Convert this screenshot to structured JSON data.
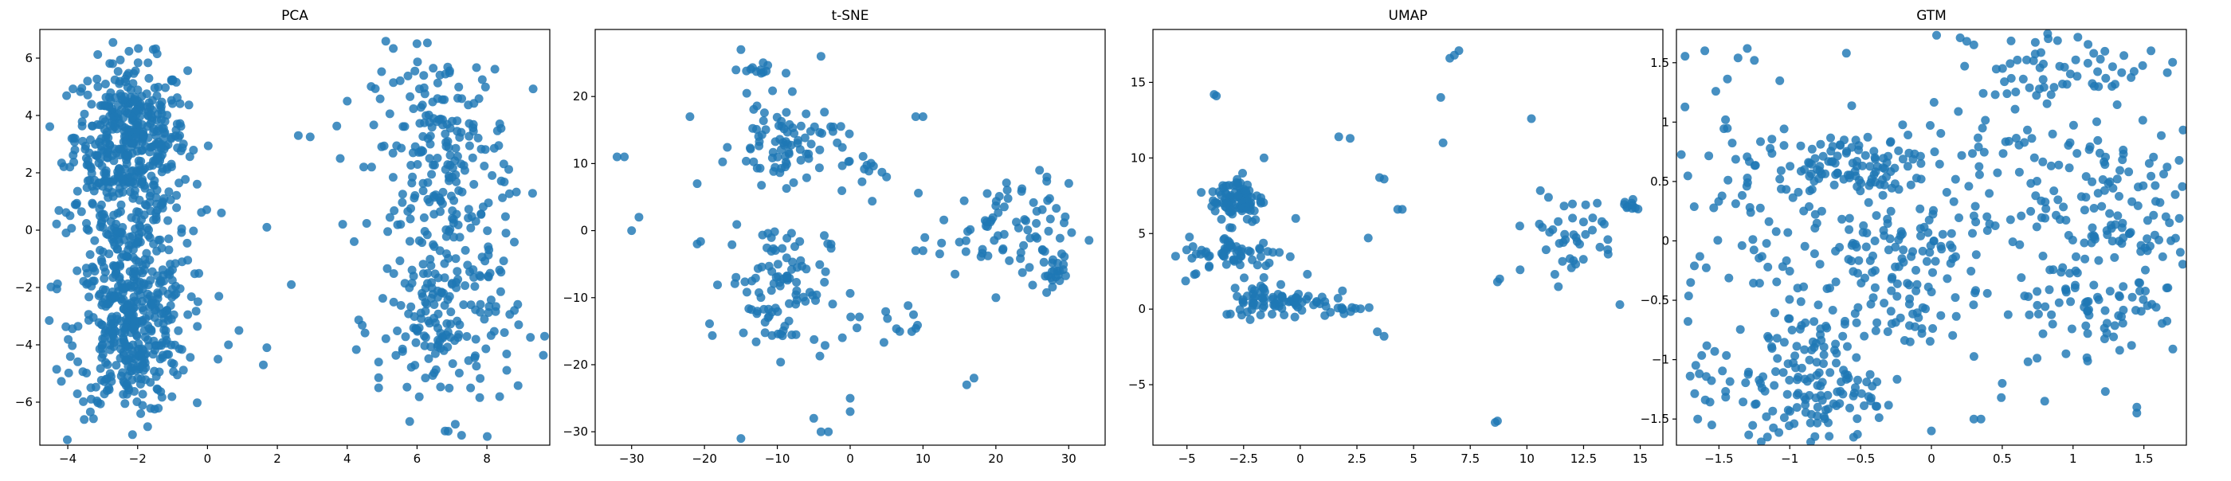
{
  "figure": {
    "background": "#ffffff",
    "point_color": "#1f77b4"
  },
  "chart_data": [
    {
      "type": "scatter",
      "title": "PCA",
      "xlabel": "",
      "ylabel": "",
      "xlim": [
        -4.8,
        9.8
      ],
      "ylim": [
        -7.5,
        7.0
      ],
      "xticks": [
        -4,
        -2,
        0,
        2,
        4,
        6,
        8
      ],
      "yticks": [
        -6,
        -4,
        -2,
        0,
        2,
        4,
        6
      ],
      "grid": false,
      "clusters": [
        {
          "cx": -2.2,
          "cy": 3.3,
          "sx": 0.8,
          "sy": 1.3,
          "n": 380
        },
        {
          "cx": -2.2,
          "cy": -3.5,
          "sx": 0.8,
          "sy": 1.5,
          "n": 380
        },
        {
          "cx": -2.3,
          "cy": 0.0,
          "sx": 0.9,
          "sy": 1.6,
          "n": 180
        },
        {
          "cx": 6.7,
          "cy": 3.0,
          "sx": 1.0,
          "sy": 1.6,
          "n": 170
        },
        {
          "cx": 6.9,
          "cy": -3.2,
          "sx": 1.0,
          "sy": 1.6,
          "n": 180
        },
        {
          "cx": 6.8,
          "cy": 0.3,
          "sx": 1.1,
          "sy": 1.0,
          "n": 40
        }
      ],
      "points": [
        [
          1.7,
          0.1
        ],
        [
          2.6,
          3.3
        ],
        [
          2.4,
          -1.9
        ],
        [
          1.6,
          -4.7
        ],
        [
          1.7,
          -4.1
        ],
        [
          4.0,
          4.5
        ],
        [
          3.8,
          2.5
        ],
        [
          4.2,
          -0.4
        ],
        [
          4.7,
          2.2
        ],
        [
          4.9,
          -4.6
        ],
        [
          4.9,
          -5.5
        ],
        [
          0.4,
          0.6
        ],
        [
          0.3,
          -4.5
        ],
        [
          0.9,
          -3.5
        ],
        [
          0.6,
          -4.0
        ]
      ]
    },
    {
      "type": "scatter",
      "title": "t-SNE",
      "xlabel": "",
      "ylabel": "",
      "xlim": [
        -35,
        35
      ],
      "ylim": [
        -32,
        30
      ],
      "xticks": [
        -30,
        -20,
        -10,
        0,
        10,
        20,
        30
      ],
      "yticks": [
        -30,
        -20,
        -10,
        0,
        10,
        20
      ],
      "grid": false,
      "clusters": [
        {
          "cx": -9,
          "cy": 13,
          "sx": 3.5,
          "sy": 3.0,
          "n": 80
        },
        {
          "cx": -10,
          "cy": -8,
          "sx": 3.5,
          "sy": 5.0,
          "n": 100
        },
        {
          "cx": -13,
          "cy": 24,
          "sx": 1.5,
          "sy": 0.5,
          "n": 12
        },
        {
          "cx": 21,
          "cy": 0,
          "sx": 4.5,
          "sy": 3.5,
          "n": 70
        },
        {
          "cx": 28,
          "cy": -6,
          "sx": 1.8,
          "sy": 1.5,
          "n": 25
        },
        {
          "cx": 1,
          "cy": 10,
          "sx": 1.5,
          "sy": 3.0,
          "n": 15
        },
        {
          "cx": 5,
          "cy": -14,
          "sx": 3.0,
          "sy": 1.5,
          "n": 15
        }
      ],
      "points": [
        [
          -32,
          11
        ],
        [
          -31,
          11
        ],
        [
          -30,
          0
        ],
        [
          -29,
          2
        ],
        [
          -22,
          17
        ],
        [
          -21,
          7
        ],
        [
          -21,
          -2
        ],
        [
          -15,
          27
        ],
        [
          -15,
          -31
        ],
        [
          -5,
          -28
        ],
        [
          -4,
          -30
        ],
        [
          -3,
          -30
        ],
        [
          0,
          -25
        ],
        [
          0,
          -27
        ],
        [
          9,
          17
        ],
        [
          10,
          17
        ],
        [
          9,
          -3
        ],
        [
          10,
          -3
        ],
        [
          17,
          -22
        ],
        [
          16,
          -23
        ],
        [
          20,
          -10
        ],
        [
          26,
          9
        ],
        [
          27,
          8
        ],
        [
          -4,
          26
        ],
        [
          5,
          8
        ]
      ]
    },
    {
      "type": "scatter",
      "title": "UMAP",
      "xlabel": "",
      "ylabel": "",
      "xlim": [
        -6.5,
        16.0
      ],
      "ylim": [
        -9.0,
        18.5
      ],
      "xticks": [
        -5.0,
        -2.5,
        0.0,
        2.5,
        5.0,
        7.5,
        10.0,
        12.5,
        15.0
      ],
      "yticks": [
        -5,
        0,
        5,
        10,
        15
      ],
      "grid": false,
      "clusters": [
        {
          "cx": -2.8,
          "cy": 7.3,
          "sx": 0.6,
          "sy": 0.8,
          "n": 90
        },
        {
          "cx": -2.8,
          "cy": 3.6,
          "sx": 1.1,
          "sy": 0.6,
          "n": 60
        },
        {
          "cx": -1.0,
          "cy": 0.6,
          "sx": 1.2,
          "sy": 0.6,
          "n": 80
        },
        {
          "cx": 12.0,
          "cy": 5.0,
          "sx": 1.0,
          "sy": 1.3,
          "n": 40
        },
        {
          "cx": 14.5,
          "cy": 6.8,
          "sx": 0.3,
          "sy": 0.3,
          "n": 10
        },
        {
          "cx": 2.0,
          "cy": 0.0,
          "sx": 0.8,
          "sy": 0.2,
          "n": 10
        }
      ],
      "points": [
        [
          -3.8,
          14.2
        ],
        [
          -3.7,
          14.1
        ],
        [
          6.6,
          16.6
        ],
        [
          6.8,
          16.8
        ],
        [
          7.0,
          17.1
        ],
        [
          10.2,
          12.6
        ],
        [
          6.2,
          14.0
        ],
        [
          6.3,
          11.0
        ],
        [
          1.7,
          11.4
        ],
        [
          2.2,
          11.3
        ],
        [
          3.0,
          4.7
        ],
        [
          3.5,
          8.7
        ],
        [
          3.7,
          8.6
        ],
        [
          4.3,
          6.6
        ],
        [
          4.5,
          6.6
        ],
        [
          3.7,
          -1.8
        ],
        [
          3.4,
          -1.5
        ],
        [
          8.7,
          -7.4
        ],
        [
          8.6,
          -7.5
        ],
        [
          8.7,
          1.8
        ],
        [
          8.8,
          2.0
        ],
        [
          9.7,
          2.6
        ],
        [
          14.1,
          0.3
        ],
        [
          -1.6,
          10.0
        ],
        [
          -0.2,
          6.0
        ],
        [
          -5.5,
          3.5
        ]
      ]
    },
    {
      "type": "scatter",
      "title": "GTM",
      "xlabel": "",
      "ylabel": "",
      "xlim": [
        -1.8,
        1.8
      ],
      "ylim": [
        -1.72,
        1.78
      ],
      "xticks": [
        -1.5,
        -1.0,
        -0.5,
        0.0,
        0.5,
        1.0,
        1.5
      ],
      "yticks": [
        -1.5,
        -1.0,
        -0.5,
        0.0,
        0.5,
        1.0,
        1.5
      ],
      "grid": false,
      "clusters": [
        {
          "cx": -0.6,
          "cy": 0.65,
          "sx": 0.25,
          "sy": 0.12,
          "n": 90
        },
        {
          "cx": -0.8,
          "cy": -1.2,
          "sx": 0.2,
          "sy": 0.3,
          "n": 120
        },
        {
          "cx": -0.3,
          "cy": -0.3,
          "sx": 0.35,
          "sy": 0.4,
          "n": 130
        },
        {
          "cx": 1.3,
          "cy": 0.3,
          "sx": 0.3,
          "sy": 0.3,
          "n": 90
        },
        {
          "cx": 1.2,
          "cy": -0.5,
          "sx": 0.3,
          "sy": 0.25,
          "n": 80
        },
        {
          "cx": 1.0,
          "cy": 1.5,
          "sx": 0.4,
          "sy": 0.15,
          "n": 60
        },
        {
          "cx": 0.3,
          "cy": 0.5,
          "sx": 0.6,
          "sy": 0.5,
          "n": 120
        },
        {
          "cx": -1.3,
          "cy": 0.3,
          "sx": 0.3,
          "sy": 0.6,
          "n": 70
        },
        {
          "cx": -1.3,
          "cy": -1.3,
          "sx": 0.25,
          "sy": 0.25,
          "n": 40
        }
      ],
      "points": [
        [
          -1.6,
          1.6
        ],
        [
          -1.3,
          1.62
        ],
        [
          -1.25,
          1.52
        ],
        [
          -0.6,
          1.58
        ],
        [
          -1.65,
          -1.5
        ],
        [
          -1.55,
          -1.55
        ],
        [
          -1.7,
          -0.35
        ],
        [
          0.25,
          1.68
        ],
        [
          0.3,
          1.65
        ],
        [
          0.0,
          -1.6
        ],
        [
          0.3,
          -1.5
        ],
        [
          0.35,
          -1.5
        ],
        [
          1.55,
          1.6
        ],
        [
          1.45,
          -1.45
        ],
        [
          1.45,
          -1.4
        ],
        [
          0.95,
          -0.95
        ],
        [
          0.8,
          -1.35
        ],
        [
          0.5,
          -1.2
        ]
      ]
    }
  ]
}
